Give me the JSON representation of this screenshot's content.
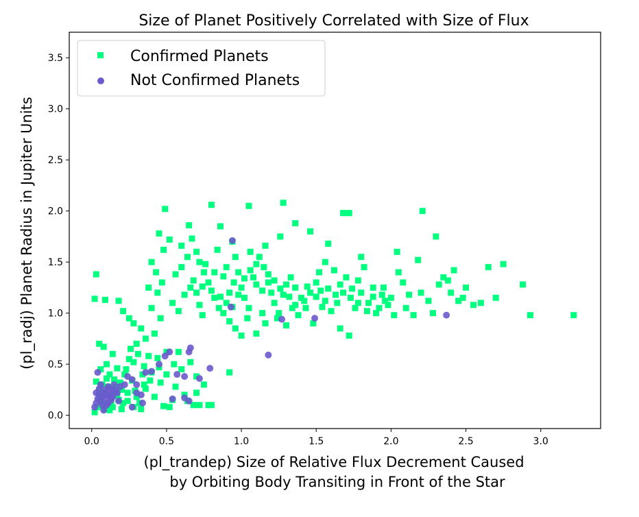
{
  "chart_data": {
    "type": "scatter",
    "title": "Size of Planet Positively Correlated with Size of Flux",
    "xlabel_lines": [
      "(pl_trandep) Size of Relative Flux Decrement Caused",
      "by Orbiting Body Transiting in Front of the Star"
    ],
    "ylabel": "(pl_radj) Planet Radius in Jupiter Units",
    "xlim": [
      -0.15,
      3.4
    ],
    "ylim": [
      -0.13,
      3.75
    ],
    "xticks": [
      "0.0",
      "0.5",
      "1.0",
      "1.5",
      "2.0",
      "2.5",
      "3.0"
    ],
    "yticks": [
      "0.0",
      "0.5",
      "1.0",
      "1.5",
      "2.0",
      "2.5",
      "3.0",
      "3.5"
    ],
    "grid": false,
    "legend_position": "top-left",
    "series": [
      {
        "name": "Confirmed Planets",
        "marker": "square",
        "color": "#00ff7f",
        "points": [
          [
            0.02,
            1.14
          ],
          [
            0.03,
            1.38
          ],
          [
            0.09,
            1.13
          ],
          [
            0.05,
            0.7
          ],
          [
            0.08,
            0.67
          ],
          [
            0.14,
            0.6
          ],
          [
            0.1,
            0.5
          ],
          [
            0.06,
            0.45
          ],
          [
            0.12,
            0.4
          ],
          [
            0.02,
            0.03
          ],
          [
            0.04,
            0.08
          ],
          [
            0.07,
            0.12
          ],
          [
            0.05,
            0.18
          ],
          [
            0.09,
            0.22
          ],
          [
            0.11,
            0.28
          ],
          [
            0.03,
            0.33
          ],
          [
            0.15,
            0.35
          ],
          [
            0.08,
            0.1
          ],
          [
            0.18,
            0.15
          ],
          [
            0.2,
            0.25
          ],
          [
            0.12,
            0.05
          ],
          [
            0.22,
            0.4
          ],
          [
            0.25,
            0.55
          ],
          [
            0.17,
            0.46
          ],
          [
            0.13,
            0.2
          ],
          [
            0.21,
            0.12
          ],
          [
            0.28,
            0.08
          ],
          [
            0.33,
            0.06
          ],
          [
            0.3,
            0.18
          ],
          [
            0.35,
            0.3
          ],
          [
            0.4,
            0.42
          ],
          [
            0.38,
            0.58
          ],
          [
            0.26,
            0.65
          ],
          [
            0.45,
            0.47
          ],
          [
            0.5,
            0.62
          ],
          [
            0.55,
            0.5
          ],
          [
            0.6,
            0.45
          ],
          [
            0.56,
            0.28
          ],
          [
            0.62,
            0.2
          ],
          [
            0.68,
            0.1
          ],
          [
            0.72,
            0.1
          ],
          [
            0.78,
            0.1
          ],
          [
            0.8,
            0.1
          ],
          [
            0.75,
            0.3
          ],
          [
            0.7,
            0.38
          ],
          [
            0.48,
            0.09
          ],
          [
            0.52,
            0.08
          ],
          [
            0.18,
            1.12
          ],
          [
            0.21,
            1.02
          ],
          [
            0.25,
            0.95
          ],
          [
            0.28,
            0.9
          ],
          [
            0.33,
            0.85
          ],
          [
            0.36,
            0.75
          ],
          [
            0.3,
            0.7
          ],
          [
            0.42,
            0.8
          ],
          [
            0.46,
            0.95
          ],
          [
            0.4,
            1.05
          ],
          [
            0.44,
            1.2
          ],
          [
            0.38,
            1.25
          ],
          [
            0.47,
            1.3
          ],
          [
            0.43,
            1.4
          ],
          [
            0.4,
            1.5
          ],
          [
            0.48,
            1.62
          ],
          [
            0.45,
            1.78
          ],
          [
            0.52,
            1.72
          ],
          [
            0.49,
            2.02
          ],
          [
            0.6,
            1.66
          ],
          [
            0.65,
            1.86
          ],
          [
            0.67,
            1.73
          ],
          [
            0.7,
            1.6
          ],
          [
            0.72,
            1.5
          ],
          [
            0.75,
            1.4
          ],
          [
            0.78,
            1.3
          ],
          [
            0.8,
            1.22
          ],
          [
            0.82,
            1.15
          ],
          [
            0.85,
            1.05
          ],
          [
            0.88,
            1.0
          ],
          [
            0.9,
            1.1
          ],
          [
            0.92,
            1.2
          ],
          [
            0.95,
            1.3
          ],
          [
            0.98,
            1.4
          ],
          [
            1.0,
            1.25
          ],
          [
            1.02,
            1.15
          ],
          [
            1.05,
            1.05
          ],
          [
            1.08,
            1.35
          ],
          [
            1.1,
            1.48
          ],
          [
            1.12,
            1.55
          ],
          [
            1.15,
            1.45
          ],
          [
            1.18,
            1.3
          ],
          [
            1.2,
            1.2
          ],
          [
            1.22,
            1.1
          ],
          [
            1.25,
            1.0
          ],
          [
            1.28,
            1.18
          ],
          [
            1.3,
            1.28
          ],
          [
            1.33,
            1.35
          ],
          [
            1.36,
            1.25
          ],
          [
            1.4,
            1.15
          ],
          [
            1.43,
            1.05
          ],
          [
            1.46,
            1.2
          ],
          [
            1.5,
            1.3
          ],
          [
            1.53,
            1.22
          ],
          [
            1.56,
            1.12
          ],
          [
            1.6,
            1.02
          ],
          [
            1.63,
            1.18
          ],
          [
            1.66,
            1.28
          ],
          [
            1.7,
            1.35
          ],
          [
            1.73,
            1.15
          ],
          [
            1.76,
            1.05
          ],
          [
            1.8,
            1.2
          ],
          [
            1.85,
            1.1
          ],
          [
            1.9,
            1.0
          ],
          [
            1.95,
            1.25
          ],
          [
            2.0,
            1.15
          ],
          [
            2.05,
            1.4
          ],
          [
            2.1,
            1.05
          ],
          [
            2.15,
            0.98
          ],
          [
            2.2,
            1.2
          ],
          [
            2.25,
            1.12
          ],
          [
            2.3,
            1.75
          ],
          [
            2.35,
            1.35
          ],
          [
            2.4,
            1.2
          ],
          [
            2.45,
            1.12
          ],
          [
            2.5,
            1.25
          ],
          [
            2.55,
            1.08
          ],
          [
            2.6,
            1.1
          ],
          [
            2.65,
            1.45
          ],
          [
            2.7,
            1.15
          ],
          [
            2.75,
            1.48
          ],
          [
            2.88,
            1.28
          ],
          [
            2.93,
            0.98
          ],
          [
            3.22,
            0.98
          ],
          [
            2.21,
            2.0
          ],
          [
            2.04,
            1.6
          ],
          [
            1.8,
            1.55
          ],
          [
            1.68,
            1.98
          ],
          [
            1.72,
            1.98
          ],
          [
            1.28,
            2.08
          ],
          [
            1.05,
            2.05
          ],
          [
            0.8,
            2.06
          ],
          [
            0.86,
            1.85
          ],
          [
            0.94,
            1.7
          ],
          [
            0.96,
            1.55
          ],
          [
            1.06,
            1.6
          ],
          [
            1.16,
            1.66
          ],
          [
            1.26,
            1.75
          ],
          [
            1.36,
            1.88
          ],
          [
            1.46,
            1.8
          ],
          [
            1.58,
            1.68
          ],
          [
            0.56,
            1.38
          ],
          [
            0.6,
            1.45
          ],
          [
            0.64,
            1.55
          ],
          [
            0.66,
            1.25
          ],
          [
            0.7,
            1.2
          ],
          [
            0.72,
            1.08
          ],
          [
            0.74,
            0.98
          ],
          [
            0.76,
            1.48
          ],
          [
            0.84,
            1.62
          ],
          [
            0.88,
            1.36
          ],
          [
            0.9,
            1.45
          ],
          [
            0.92,
            0.92
          ],
          [
            0.96,
            0.85
          ],
          [
            1.0,
            0.78
          ],
          [
            1.04,
            0.95
          ],
          [
            1.1,
            0.8
          ],
          [
            1.14,
            1.0
          ],
          [
            1.16,
            0.9
          ],
          [
            1.24,
            0.95
          ],
          [
            1.3,
            0.88
          ],
          [
            1.34,
            1.05
          ],
          [
            1.38,
            0.98
          ],
          [
            1.42,
            1.12
          ],
          [
            1.48,
            0.9
          ],
          [
            1.52,
            1.4
          ],
          [
            1.56,
            1.5
          ],
          [
            1.62,
            1.42
          ],
          [
            1.66,
            0.85
          ],
          [
            1.72,
            0.78
          ],
          [
            1.78,
            1.32
          ],
          [
            1.82,
            1.45
          ],
          [
            1.88,
            1.25
          ],
          [
            1.92,
            1.05
          ],
          [
            1.96,
            1.12
          ],
          [
            2.02,
            0.98
          ],
          [
            2.08,
            1.3
          ],
          [
            2.12,
            1.18
          ],
          [
            2.18,
            1.52
          ],
          [
            2.28,
            1.0
          ],
          [
            2.32,
            1.28
          ],
          [
            2.38,
            1.32
          ],
          [
            2.42,
            1.42
          ],
          [
            2.48,
            1.15
          ],
          [
            0.92,
            0.42
          ],
          [
            0.28,
            0.52
          ],
          [
            0.24,
            0.22
          ],
          [
            0.32,
            0.12
          ],
          [
            0.36,
            0.26
          ],
          [
            0.42,
            0.18
          ],
          [
            0.46,
            0.32
          ],
          [
            0.05,
            0.24
          ],
          [
            0.07,
            0.3
          ],
          [
            0.1,
            0.36
          ],
          [
            0.13,
            0.12
          ],
          [
            0.16,
            0.28
          ],
          [
            0.19,
            0.32
          ],
          [
            0.23,
            0.45
          ],
          [
            0.27,
            0.34
          ],
          [
            0.31,
            0.6
          ],
          [
            0.35,
            0.48
          ],
          [
            0.54,
            1.1
          ],
          [
            0.58,
            1.02
          ],
          [
            0.62,
            1.18
          ],
          [
            0.68,
            1.32
          ],
          [
            0.74,
            1.26
          ],
          [
            0.82,
            1.4
          ],
          [
            0.86,
            1.16
          ],
          [
            0.94,
            1.06
          ],
          [
            0.98,
            1.18
          ],
          [
            1.02,
            1.34
          ],
          [
            1.06,
            1.42
          ],
          [
            1.1,
            1.28
          ],
          [
            1.14,
            1.22
          ],
          [
            1.18,
            1.38
          ],
          [
            1.22,
            1.32
          ],
          [
            1.26,
            1.24
          ],
          [
            1.32,
            1.16
          ],
          [
            1.36,
            1.08
          ],
          [
            1.44,
            1.26
          ],
          [
            1.5,
            1.16
          ],
          [
            1.54,
            1.06
          ],
          [
            1.58,
            1.24
          ],
          [
            1.64,
            1.1
          ],
          [
            1.68,
            1.2
          ],
          [
            1.74,
            1.24
          ],
          [
            1.78,
            1.1
          ],
          [
            1.84,
            1.02
          ],
          [
            1.88,
            1.16
          ],
          [
            1.94,
            1.18
          ],
          [
            1.98,
            1.08
          ],
          [
            0.06,
            0.14
          ],
          [
            0.09,
            0.06
          ],
          [
            0.14,
            0.08
          ],
          [
            0.17,
            0.2
          ],
          [
            0.2,
            0.06
          ],
          [
            0.24,
            0.14
          ],
          [
            0.29,
            0.24
          ],
          [
            0.34,
            0.4
          ],
          [
            0.39,
            0.34
          ],
          [
            0.44,
            0.56
          ],
          [
            0.5,
            0.4
          ],
          [
            0.58,
            0.62
          ],
          [
            0.66,
            0.52
          ],
          [
            0.54,
            0.15
          ],
          [
            0.64,
            0.14
          ],
          [
            0.7,
            0.22
          ]
        ]
      },
      {
        "name": "Not Confirmed Planets",
        "marker": "circle",
        "color": "#6a5acd",
        "points": [
          [
            0.02,
            0.08
          ],
          [
            0.03,
            0.12
          ],
          [
            0.04,
            0.16
          ],
          [
            0.05,
            0.2
          ],
          [
            0.06,
            0.14
          ],
          [
            0.07,
            0.18
          ],
          [
            0.08,
            0.22
          ],
          [
            0.09,
            0.25
          ],
          [
            0.1,
            0.1
          ],
          [
            0.11,
            0.28
          ],
          [
            0.12,
            0.2
          ],
          [
            0.13,
            0.15
          ],
          [
            0.14,
            0.24
          ],
          [
            0.15,
            0.3
          ],
          [
            0.03,
            0.22
          ],
          [
            0.05,
            0.26
          ],
          [
            0.07,
            0.1
          ],
          [
            0.09,
            0.16
          ],
          [
            0.11,
            0.12
          ],
          [
            0.13,
            0.18
          ],
          [
            0.04,
            0.42
          ],
          [
            0.17,
            0.22
          ],
          [
            0.19,
            0.28
          ],
          [
            0.22,
            0.3
          ],
          [
            0.24,
            0.38
          ],
          [
            0.27,
            0.35
          ],
          [
            0.3,
            0.3
          ],
          [
            0.33,
            0.2
          ],
          [
            0.36,
            0.42
          ],
          [
            0.4,
            0.43
          ],
          [
            0.45,
            0.5
          ],
          [
            0.49,
            0.58
          ],
          [
            0.52,
            0.62
          ],
          [
            0.57,
            0.4
          ],
          [
            0.62,
            0.38
          ],
          [
            0.65,
            0.62
          ],
          [
            0.66,
            0.66
          ],
          [
            0.72,
            0.36
          ],
          [
            0.79,
            0.46
          ],
          [
            0.54,
            0.16
          ],
          [
            0.62,
            0.17
          ],
          [
            0.65,
            0.14
          ],
          [
            0.27,
            0.08
          ],
          [
            0.3,
            0.22
          ],
          [
            0.34,
            0.12
          ],
          [
            0.94,
            1.71
          ],
          [
            0.93,
            1.06
          ],
          [
            1.18,
            0.59
          ],
          [
            1.27,
            0.94
          ],
          [
            1.49,
            0.95
          ],
          [
            2.37,
            0.98
          ],
          [
            0.06,
            0.3
          ],
          [
            0.08,
            0.05
          ],
          [
            0.1,
            0.2
          ],
          [
            0.12,
            0.26
          ],
          [
            0.14,
            0.18
          ],
          [
            0.16,
            0.24
          ],
          [
            0.18,
            0.14
          ]
        ]
      }
    ]
  }
}
